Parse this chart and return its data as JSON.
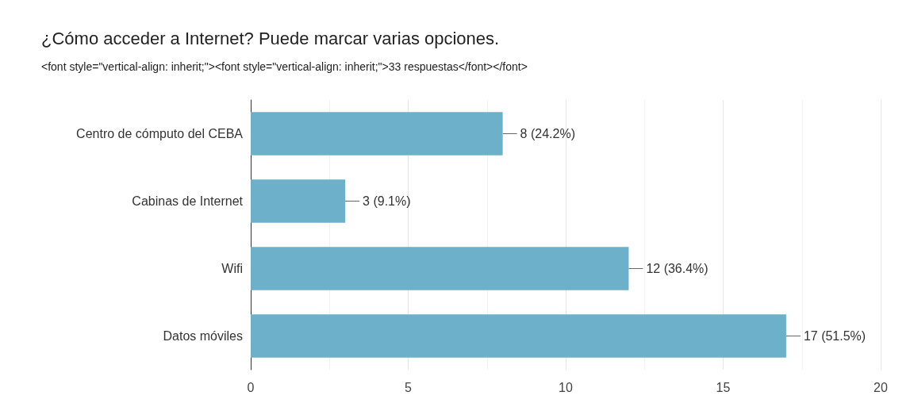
{
  "chart_data": {
    "type": "bar",
    "orientation": "horizontal",
    "title": "¿Cómo acceder a Internet? Puede marcar varias opciones.",
    "subtitle": "<font style=\"vertical-align: inherit;\"><font style=\"vertical-align: inherit;\">33 respuestas</font></font>",
    "categories": [
      "Centro de cómputo del CEBA",
      "Cabinas de Internet",
      "Wifi",
      "Datos móviles"
    ],
    "values": [
      8,
      3,
      12,
      17
    ],
    "value_labels": [
      "8 (24.2%)",
      "3 (9.1%)",
      "12 (36.4%)",
      "17 (51.5%)"
    ],
    "color": "#6cb0ca",
    "xlim": [
      0,
      20
    ],
    "xticks": [
      0,
      5,
      10,
      15,
      20
    ],
    "grid": "x"
  }
}
